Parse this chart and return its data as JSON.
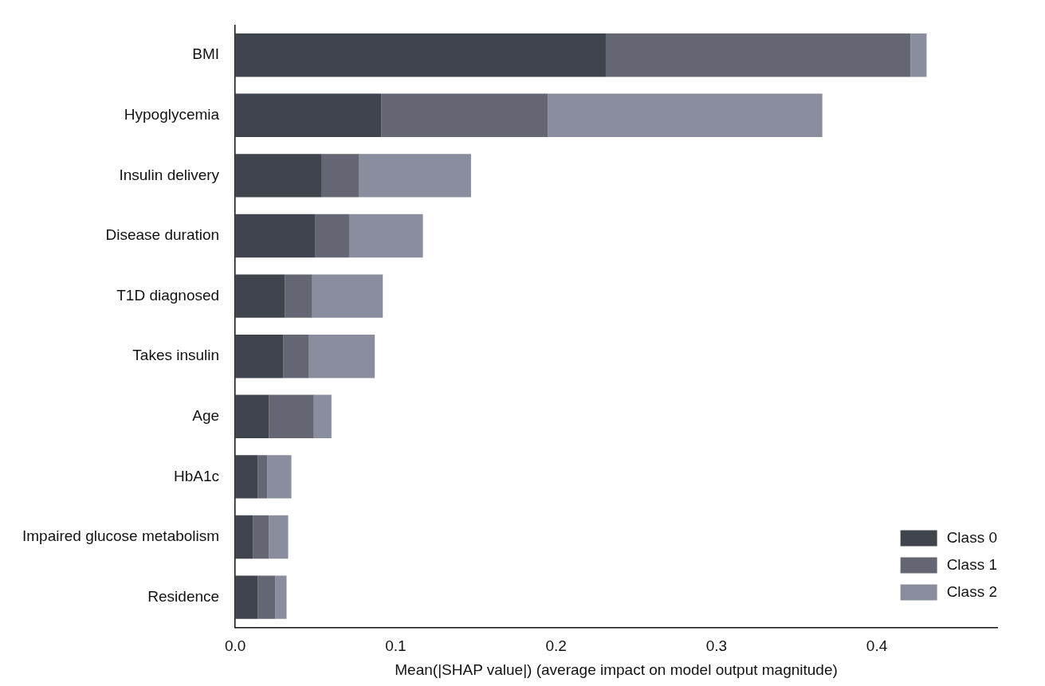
{
  "chart_data": {
    "type": "bar",
    "orientation": "horizontal",
    "stacked": true,
    "xlabel": "Mean(|SHAP value|) (average impact on model output magnitude)",
    "categories": [
      "BMI",
      "Hypoglycemia",
      "Insulin delivery",
      "Disease duration",
      "T1D diagnosed",
      "Takes insulin",
      "Age",
      "HbA1c",
      "Impaired glucose metabolism",
      "Residence"
    ],
    "series": [
      {
        "name": "Class 0",
        "color": "#40444c",
        "values": [
          0.231,
          0.091,
          0.054,
          0.05,
          0.031,
          0.03,
          0.021,
          0.014,
          0.011,
          0.014
        ]
      },
      {
        "name": "Class 1",
        "color": "#646773",
        "values": [
          0.19,
          0.104,
          0.023,
          0.021,
          0.017,
          0.016,
          0.028,
          0.006,
          0.01,
          0.011
        ]
      },
      {
        "name": "Class 2",
        "color": "#8a8d9e",
        "values": [
          0.01,
          0.171,
          0.07,
          0.046,
          0.044,
          0.041,
          0.011,
          0.015,
          0.012,
          0.007
        ]
      }
    ],
    "xlim": [
      0,
      0.475
    ],
    "xticks": [
      {
        "value": 0,
        "label": "0.0"
      },
      0.1,
      0.2,
      0.3,
      0.4
    ],
    "grid": false,
    "legend": "bottom right"
  }
}
